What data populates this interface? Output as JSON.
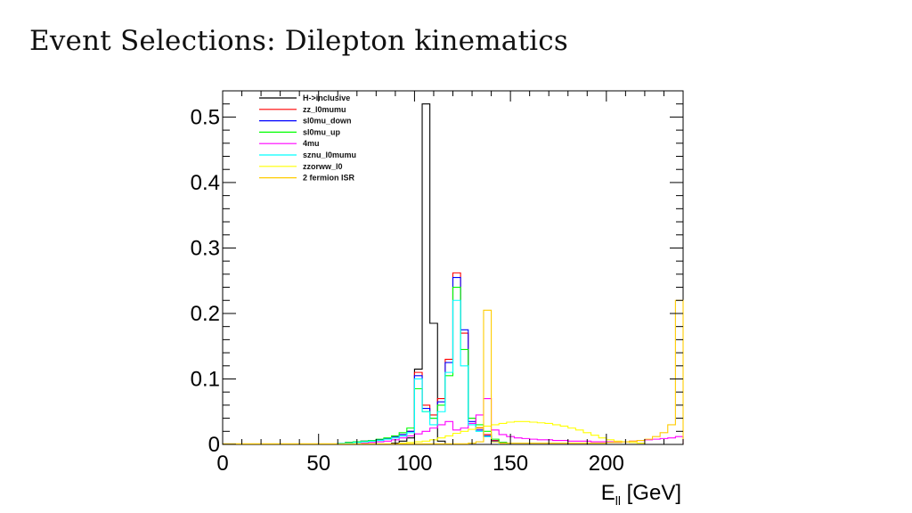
{
  "slide": {
    "title": "Event Selections: Dilepton kinematics"
  },
  "chart_data": {
    "type": "line",
    "xlabel": "E",
    "xlabel_subscript": "ll",
    "xlabel_unit": "[GeV]",
    "ylabel": "",
    "xlim": [
      0,
      240
    ],
    "ylim": [
      0,
      0.54
    ],
    "x_ticks": [
      "0",
      "50",
      "100",
      "150",
      "200"
    ],
    "x_tick_values": [
      0,
      50,
      100,
      150,
      200
    ],
    "y_ticks": [
      "0",
      "0.1",
      "0.2",
      "0.3",
      "0.4",
      "0.5"
    ],
    "y_tick_values": [
      0,
      0.1,
      0.2,
      0.3,
      0.4,
      0.5
    ],
    "bin_width": 4,
    "grid": false,
    "legend_position": "top-left",
    "series": [
      {
        "name": "H->inclusive",
        "color": "#000000",
        "bins": [
          [
            88,
            0.002
          ],
          [
            92,
            0.005
          ],
          [
            96,
            0.01
          ],
          [
            100,
            0.115
          ],
          [
            104,
            0.52
          ],
          [
            108,
            0.185
          ],
          [
            112,
            0.005
          ]
        ]
      },
      {
        "name": "zz_l0mumu",
        "color": "#ff0000",
        "bins": [
          [
            60,
            0.002
          ],
          [
            64,
            0.003
          ],
          [
            68,
            0.004
          ],
          [
            72,
            0.005
          ],
          [
            76,
            0.006
          ],
          [
            80,
            0.007
          ],
          [
            84,
            0.009
          ],
          [
            88,
            0.012
          ],
          [
            92,
            0.015
          ],
          [
            96,
            0.02
          ],
          [
            100,
            0.11
          ],
          [
            104,
            0.06
          ],
          [
            108,
            0.045
          ],
          [
            112,
            0.07
          ],
          [
            116,
            0.13
          ],
          [
            120,
            0.262
          ],
          [
            124,
            0.17
          ],
          [
            128,
            0.04
          ],
          [
            132,
            0.025
          ],
          [
            136,
            0.015
          ],
          [
            140,
            0.006
          ],
          [
            144,
            0.003
          ]
        ]
      },
      {
        "name": "sl0mu_down",
        "color": "#0000ff",
        "bins": [
          [
            60,
            0.002
          ],
          [
            64,
            0.003
          ],
          [
            68,
            0.004
          ],
          [
            72,
            0.005
          ],
          [
            76,
            0.006
          ],
          [
            80,
            0.007
          ],
          [
            84,
            0.009
          ],
          [
            88,
            0.012
          ],
          [
            92,
            0.015
          ],
          [
            96,
            0.02
          ],
          [
            100,
            0.105
          ],
          [
            104,
            0.055
          ],
          [
            108,
            0.04
          ],
          [
            112,
            0.065
          ],
          [
            116,
            0.125
          ],
          [
            120,
            0.255
          ],
          [
            124,
            0.175
          ],
          [
            128,
            0.035
          ],
          [
            132,
            0.022
          ],
          [
            136,
            0.013
          ],
          [
            140,
            0.005
          ],
          [
            144,
            0.003
          ]
        ]
      },
      {
        "name": "sl0mu_up",
        "color": "#00ff00",
        "bins": [
          [
            60,
            0.002
          ],
          [
            64,
            0.003
          ],
          [
            68,
            0.004
          ],
          [
            72,
            0.005
          ],
          [
            76,
            0.006
          ],
          [
            80,
            0.008
          ],
          [
            84,
            0.01
          ],
          [
            88,
            0.013
          ],
          [
            92,
            0.018
          ],
          [
            96,
            0.025
          ],
          [
            100,
            0.085
          ],
          [
            104,
            0.05
          ],
          [
            108,
            0.04
          ],
          [
            112,
            0.06
          ],
          [
            116,
            0.105
          ],
          [
            120,
            0.24
          ],
          [
            124,
            0.145
          ],
          [
            128,
            0.04
          ],
          [
            132,
            0.03
          ],
          [
            136,
            0.02
          ],
          [
            140,
            0.008
          ],
          [
            144,
            0.003
          ]
        ]
      },
      {
        "name": "4mu",
        "color": "#ff00ff",
        "bins": [
          [
            72,
            0.002
          ],
          [
            76,
            0.003
          ],
          [
            80,
            0.004
          ],
          [
            84,
            0.005
          ],
          [
            88,
            0.007
          ],
          [
            92,
            0.01
          ],
          [
            96,
            0.013
          ],
          [
            100,
            0.016
          ],
          [
            104,
            0.02
          ],
          [
            108,
            0.025
          ],
          [
            112,
            0.03
          ],
          [
            116,
            0.035
          ],
          [
            120,
            0.022
          ],
          [
            124,
            0.025
          ],
          [
            128,
            0.032
          ],
          [
            132,
            0.045
          ],
          [
            136,
            0.07
          ],
          [
            140,
            0.022
          ],
          [
            144,
            0.015
          ],
          [
            148,
            0.012
          ],
          [
            152,
            0.01
          ],
          [
            156,
            0.009
          ],
          [
            160,
            0.008
          ],
          [
            164,
            0.007
          ],
          [
            168,
            0.007
          ],
          [
            172,
            0.006
          ],
          [
            176,
            0.006
          ],
          [
            180,
            0.005
          ],
          [
            184,
            0.005
          ],
          [
            188,
            0.005
          ],
          [
            192,
            0.004
          ],
          [
            196,
            0.004
          ],
          [
            200,
            0.004
          ],
          [
            204,
            0.004
          ],
          [
            208,
            0.004
          ],
          [
            212,
            0.005
          ],
          [
            216,
            0.006
          ],
          [
            220,
            0.007
          ],
          [
            224,
            0.008
          ],
          [
            228,
            0.009
          ],
          [
            232,
            0.01
          ],
          [
            236,
            0.012
          ]
        ]
      },
      {
        "name": "sznu_l0mumu",
        "color": "#00ffff",
        "bins": [
          [
            60,
            0.002
          ],
          [
            64,
            0.002
          ],
          [
            68,
            0.003
          ],
          [
            72,
            0.004
          ],
          [
            76,
            0.005
          ],
          [
            80,
            0.006
          ],
          [
            84,
            0.008
          ],
          [
            88,
            0.01
          ],
          [
            92,
            0.013
          ],
          [
            96,
            0.018
          ],
          [
            100,
            0.1
          ],
          [
            104,
            0.05
          ],
          [
            108,
            0.03
          ],
          [
            112,
            0.05
          ],
          [
            116,
            0.11
          ],
          [
            120,
            0.22
          ],
          [
            124,
            0.12
          ],
          [
            128,
            0.03
          ],
          [
            132,
            0.02
          ],
          [
            136,
            0.012
          ],
          [
            140,
            0.004
          ]
        ]
      },
      {
        "name": "zzorww_l0",
        "color": "#ffff00",
        "bins": [
          [
            92,
            0.002
          ],
          [
            96,
            0.003
          ],
          [
            100,
            0.004
          ],
          [
            104,
            0.005
          ],
          [
            108,
            0.007
          ],
          [
            112,
            0.01
          ],
          [
            116,
            0.013
          ],
          [
            120,
            0.017
          ],
          [
            124,
            0.02
          ],
          [
            128,
            0.023
          ],
          [
            132,
            0.026
          ],
          [
            136,
            0.028
          ],
          [
            140,
            0.03
          ],
          [
            144,
            0.032
          ],
          [
            148,
            0.034
          ],
          [
            152,
            0.035
          ],
          [
            156,
            0.035
          ],
          [
            160,
            0.034
          ],
          [
            164,
            0.033
          ],
          [
            168,
            0.032
          ],
          [
            172,
            0.03
          ],
          [
            176,
            0.028
          ],
          [
            180,
            0.025
          ],
          [
            184,
            0.022
          ],
          [
            188,
            0.018
          ],
          [
            192,
            0.014
          ],
          [
            196,
            0.01
          ],
          [
            200,
            0.007
          ],
          [
            204,
            0.005
          ],
          [
            208,
            0.004
          ],
          [
            212,
            0.003
          ],
          [
            216,
            0.002
          ]
        ]
      },
      {
        "name": "2 fermion ISR",
        "color": "#ffcc00",
        "bins": [
          [
            0,
            0.001
          ],
          [
            4,
            0.001
          ],
          [
            8,
            0.001
          ],
          [
            12,
            0.001
          ],
          [
            16,
            0.001
          ],
          [
            20,
            0.001
          ],
          [
            24,
            0.001
          ],
          [
            28,
            0.001
          ],
          [
            32,
            0.001
          ],
          [
            36,
            0.001
          ],
          [
            40,
            0.001
          ],
          [
            44,
            0.001
          ],
          [
            48,
            0.001
          ],
          [
            52,
            0.001
          ],
          [
            56,
            0.001
          ],
          [
            60,
            0.001
          ],
          [
            64,
            0.001
          ],
          [
            68,
            0.001
          ],
          [
            72,
            0.001
          ],
          [
            76,
            0.001
          ],
          [
            80,
            0.001
          ],
          [
            84,
            0.001
          ],
          [
            88,
            0.001
          ],
          [
            92,
            0.001
          ],
          [
            96,
            0.001
          ],
          [
            100,
            0.001
          ],
          [
            104,
            0.001
          ],
          [
            108,
            0.001
          ],
          [
            112,
            0.001
          ],
          [
            116,
            0.001
          ],
          [
            120,
            0.001
          ],
          [
            124,
            0.001
          ],
          [
            128,
            0.002
          ],
          [
            132,
            0.004
          ],
          [
            136,
            0.205
          ],
          [
            140,
            0.004
          ],
          [
            144,
            0.002
          ],
          [
            148,
            0.002
          ],
          [
            152,
            0.002
          ],
          [
            156,
            0.002
          ],
          [
            160,
            0.002
          ],
          [
            164,
            0.002
          ],
          [
            168,
            0.002
          ],
          [
            172,
            0.002
          ],
          [
            176,
            0.002
          ],
          [
            180,
            0.002
          ],
          [
            184,
            0.002
          ],
          [
            188,
            0.002
          ],
          [
            192,
            0.002
          ],
          [
            196,
            0.002
          ],
          [
            200,
            0.003
          ],
          [
            204,
            0.003
          ],
          [
            208,
            0.004
          ],
          [
            212,
            0.005
          ],
          [
            216,
            0.006
          ],
          [
            220,
            0.008
          ],
          [
            224,
            0.012
          ],
          [
            228,
            0.018
          ],
          [
            232,
            0.03
          ],
          [
            236,
            0.22
          ]
        ]
      }
    ]
  }
}
